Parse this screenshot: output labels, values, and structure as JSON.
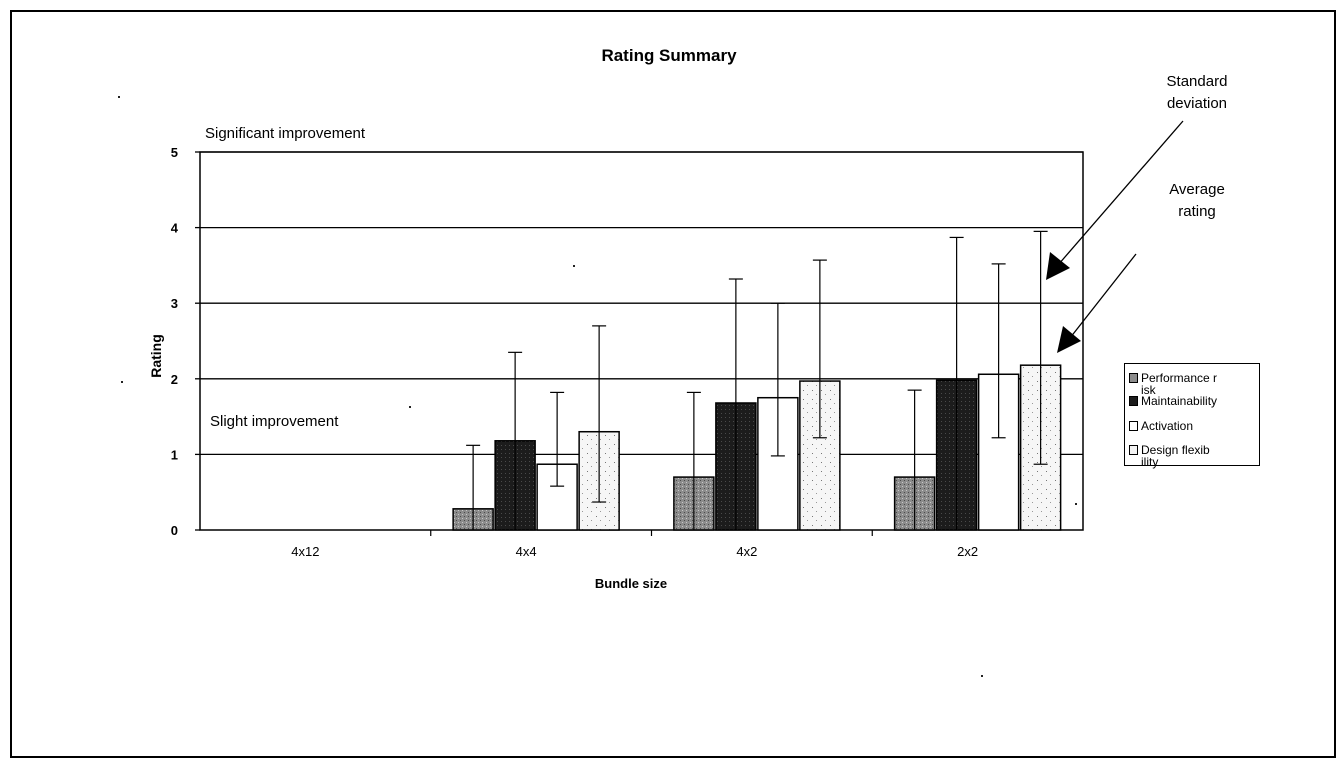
{
  "chart_data": {
    "type": "bar",
    "title": "Rating Summary",
    "xlabel": "Bundle size",
    "ylabel": "Rating",
    "categories": [
      "4x12",
      "4x4",
      "4x2",
      "2x2"
    ],
    "yticks": [
      "0",
      "1",
      "2",
      "3",
      "4",
      "5"
    ],
    "ylim": [
      0,
      5
    ],
    "grid": true,
    "legend_position": "right",
    "series": [
      {
        "name": "Performance risk",
        "color": "#8c8c8c",
        "values": [
          null,
          0.28,
          0.7,
          0.7
        ],
        "error_low": [
          null,
          0.0,
          0.0,
          0.0
        ],
        "error_high": [
          null,
          1.12,
          1.82,
          1.85
        ]
      },
      {
        "name": "Maintainability",
        "color": "#1c1c1c",
        "values": [
          null,
          1.18,
          1.68,
          1.98
        ],
        "error_low": [
          null,
          0.0,
          0.0,
          0.0
        ],
        "error_high": [
          null,
          2.35,
          3.32,
          3.87
        ]
      },
      {
        "name": "Activation",
        "color": "#ffffff",
        "values": [
          null,
          0.87,
          1.75,
          2.06
        ],
        "error_low": [
          null,
          0.58,
          0.98,
          1.22
        ],
        "error_high": [
          null,
          1.82,
          3.0,
          3.52
        ]
      },
      {
        "name": "Design flexibility",
        "color": "#f3f3f3",
        "values": [
          null,
          1.3,
          1.97,
          2.18
        ],
        "error_low": [
          null,
          0.37,
          1.22,
          0.87
        ],
        "error_high": [
          null,
          2.7,
          3.57,
          3.95
        ]
      }
    ],
    "annotations": {
      "significant": "Significant improvement",
      "slight": "Slight improvement",
      "std_dev": [
        "Standard",
        "deviation"
      ],
      "avg_rating": [
        "Average",
        "rating"
      ]
    }
  },
  "legend": {
    "items": [
      {
        "text": "Performance risk",
        "color": "#8c8c8c"
      },
      {
        "text": "Maintainability",
        "color": "#1c1c1c"
      },
      {
        "text": "Activation",
        "color": "#ffffff"
      },
      {
        "text": "Design flexibility",
        "color": "#f3f3f3"
      }
    ]
  }
}
